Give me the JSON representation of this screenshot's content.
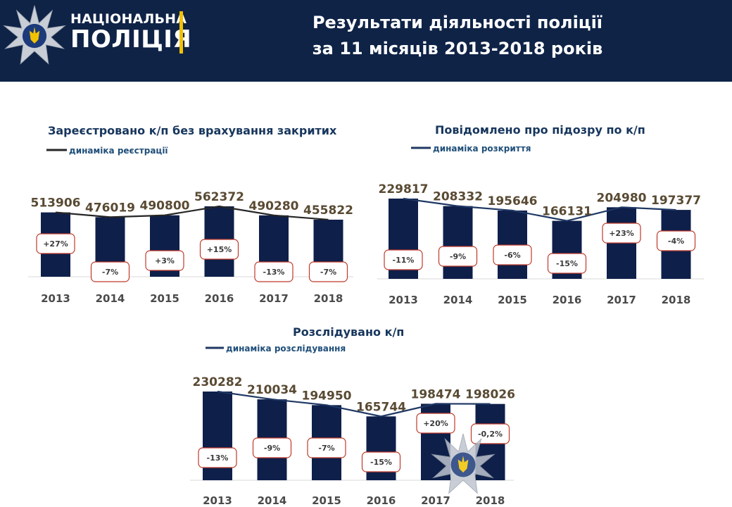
{
  "header": {
    "brand_line1": "НАЦІОНАЛЬНА",
    "brand_line2": "ПОЛІЦІЯ",
    "title_line1": "Результати діяльності поліції",
    "title_line2": "за 11 місяців 2013-2018 років"
  },
  "colors": {
    "header_bg": "#0f2347",
    "bar": "#0e1f4a",
    "accent": "#f2c200",
    "badge_border": "#c0392b"
  },
  "icons": [
    "police-star-logo-icon",
    "police-star-watermark-icon"
  ],
  "chart_data": [
    {
      "type": "bar",
      "title": "Зареєстровано к/п без врахування закритих",
      "legend": "динаміка реєстрації",
      "categories": [
        "2013",
        "2014",
        "2015",
        "2016",
        "2017",
        "2018"
      ],
      "values": [
        513906,
        476019,
        490800,
        562372,
        490280,
        455822
      ],
      "value_labels": [
        "513906",
        "476019",
        "490800",
        "562372",
        "490280",
        "455822"
      ],
      "changes": [
        "+27%",
        "-7%",
        "+3%",
        "+15%",
        "-13%",
        "-7%"
      ],
      "line_color": "#262626"
    },
    {
      "type": "bar",
      "title": "Повідомлено про підозру по к/п",
      "legend": "динаміка розкриття",
      "categories": [
        "2013",
        "2014",
        "2015",
        "2016",
        "2017",
        "2018"
      ],
      "values": [
        229817,
        208332,
        195646,
        166131,
        204980,
        197377
      ],
      "value_labels": [
        "229817",
        "208332",
        "195646",
        "166131",
        "204980",
        "197377"
      ],
      "changes": [
        "-11%",
        "-9%",
        "-6%",
        "-15%",
        "+23%",
        "-4%"
      ],
      "line_color": "#1f3864"
    },
    {
      "type": "bar",
      "title": "Розслідувано к/п",
      "legend": "динаміка розслідування",
      "categories": [
        "2013",
        "2014",
        "2015",
        "2016",
        "2017",
        "2018"
      ],
      "values": [
        230282,
        210034,
        194950,
        165744,
        198474,
        198026
      ],
      "value_labels": [
        "230282",
        "210034",
        "194950",
        "165744",
        "198474",
        "198026"
      ],
      "changes": [
        "-13%",
        "-9%",
        "-7%",
        "-15%",
        "+20%",
        "-0,2%"
      ],
      "line_color": "#1f3864"
    }
  ]
}
